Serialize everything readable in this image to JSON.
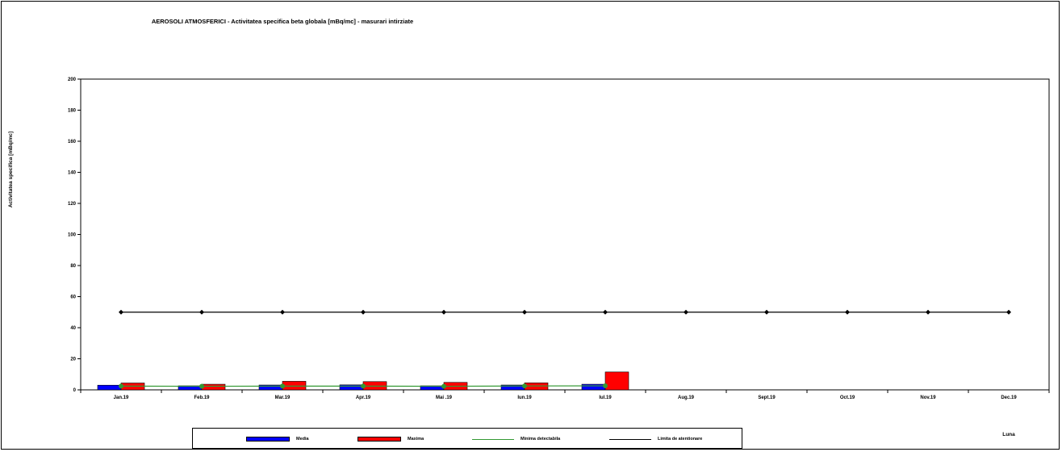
{
  "chart_data": {
    "type": "bar",
    "title": "AEROSOLI  ATMOSFERICI - Activitatea specifica beta globala [mBq/mc] - masurari intirziate",
    "xlabel": "Luna",
    "ylabel": "Activitatea specifica [mBq/mc]",
    "ylim": [
      0,
      200
    ],
    "yticks": [
      0,
      20,
      40,
      60,
      80,
      100,
      120,
      140,
      160,
      180,
      200
    ],
    "grid": false,
    "legend_position": "bottom",
    "categories": [
      "Jan.19",
      "Feb.19",
      "Mar.19",
      "Apr.19",
      "Mai .19",
      "Iun.19",
      "Iul.19",
      "Aug.19",
      "Sept.19",
      "Oct.19",
      "Nov.19",
      "Dec.19"
    ],
    "series": [
      {
        "name": "Media",
        "kind": "bar",
        "color": "#0000ff",
        "values": [
          3.0,
          2.6,
          3.1,
          3.2,
          2.6,
          3.1,
          3.6,
          null,
          null,
          null,
          null,
          null
        ]
      },
      {
        "name": "Maxima",
        "kind": "bar",
        "color": "#ff0000",
        "values": [
          4.4,
          3.6,
          5.5,
          5.3,
          4.8,
          4.5,
          11.5,
          null,
          null,
          null,
          null,
          null
        ]
      },
      {
        "name": "Minima detectabila",
        "kind": "line",
        "color": "#339933",
        "values": [
          2.4,
          2.3,
          2.4,
          2.4,
          2.3,
          2.5,
          2.6,
          null,
          null,
          null,
          null,
          null
        ]
      },
      {
        "name": "Limita de atentionare",
        "kind": "line",
        "color": "#000000",
        "values": [
          50,
          50,
          50,
          50,
          50,
          50,
          50,
          50,
          50,
          50,
          50,
          50
        ]
      }
    ]
  }
}
